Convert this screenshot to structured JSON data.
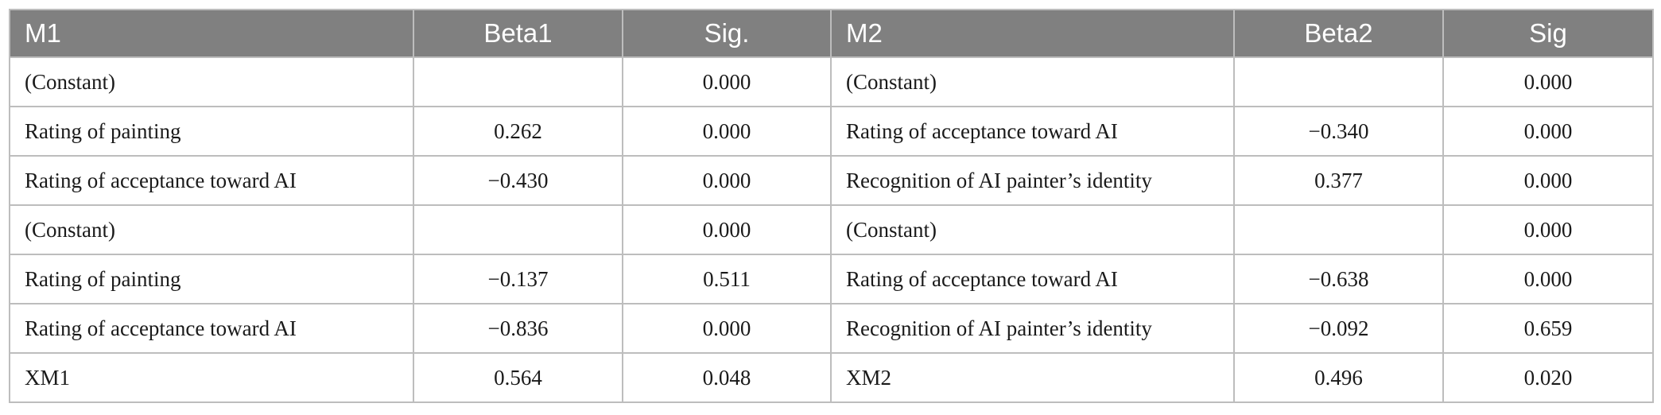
{
  "table": {
    "headers": [
      "M1",
      "Beta1",
      "Sig.",
      "M2",
      "Beta2",
      "Sig"
    ],
    "rows": [
      [
        "(Constant)",
        "",
        "0.000",
        "(Constant)",
        "",
        "0.000"
      ],
      [
        "Rating of painting",
        "0.262",
        "0.000",
        "Rating of acceptance toward AI",
        "−0.340",
        "0.000"
      ],
      [
        "Rating of acceptance toward AI",
        "−0.430",
        "0.000",
        "Recognition of AI painter’s identity",
        "0.377",
        "0.000"
      ],
      [
        "(Constant)",
        "",
        "0.000",
        "(Constant)",
        "",
        "0.000"
      ],
      [
        "Rating of painting",
        "−0.137",
        "0.511",
        "Rating of acceptance toward AI",
        "−0.638",
        "0.000"
      ],
      [
        "Rating of acceptance toward AI",
        "−0.836",
        "0.000",
        "Recognition of AI painter’s identity",
        "−0.092",
        "0.659"
      ],
      [
        "XM1",
        "0.564",
        "0.048",
        "XM2",
        "0.496",
        "0.020"
      ]
    ]
  },
  "colors": {
    "header_bg": "#808080",
    "header_text": "#ffffff",
    "border": "#bdbdbd"
  }
}
